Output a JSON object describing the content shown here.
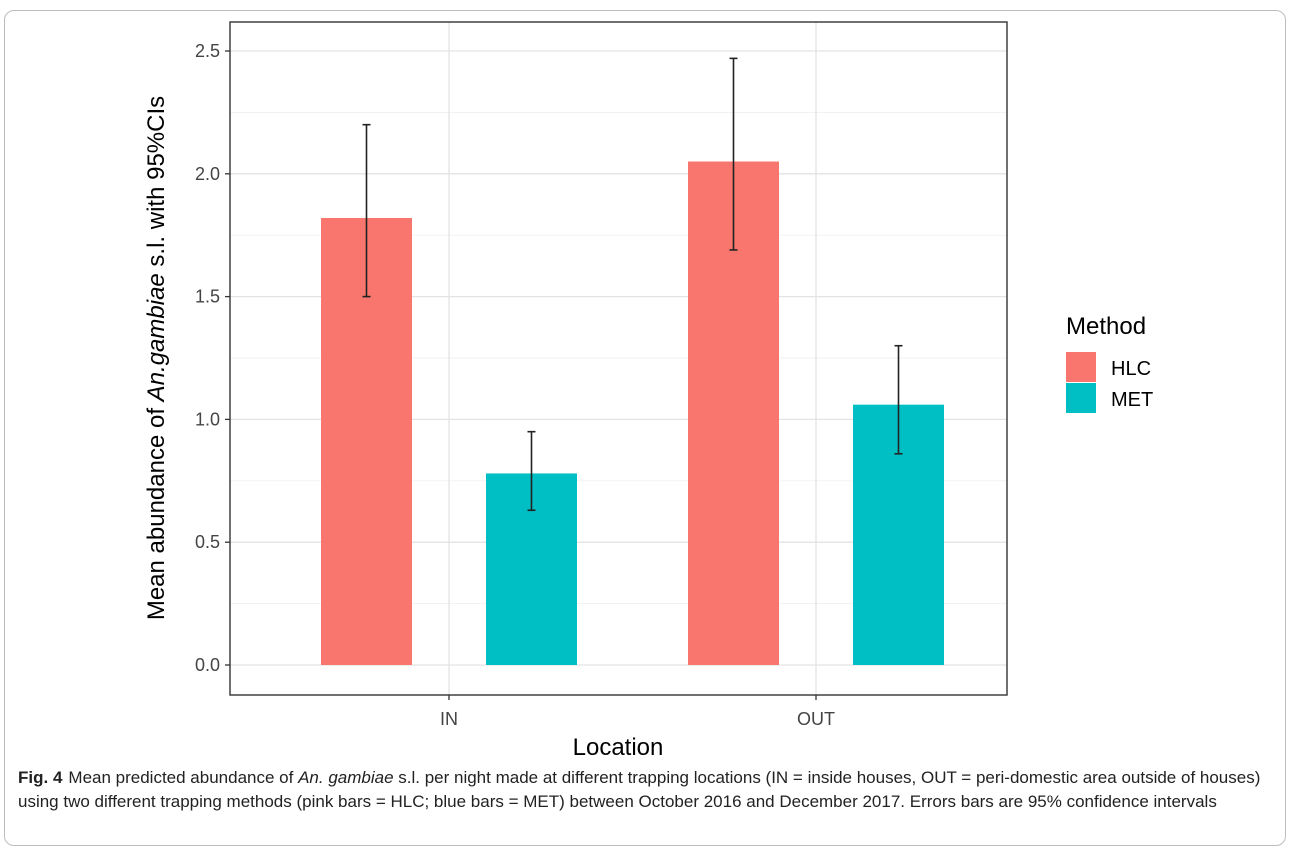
{
  "chart_data": {
    "type": "bar",
    "categories": [
      "IN",
      "OUT"
    ],
    "series": [
      {
        "name": "HLC",
        "color": "#F8766D",
        "values": [
          1.82,
          2.05
        ],
        "ci_low": [
          1.5,
          1.69
        ],
        "ci_high": [
          2.2,
          2.47
        ]
      },
      {
        "name": "MET",
        "color": "#00BFC4",
        "values": [
          0.78,
          1.06
        ],
        "ci_low": [
          0.63,
          0.86
        ],
        "ci_high": [
          0.95,
          1.3
        ]
      }
    ],
    "ylim": [
      0,
      2.6
    ],
    "yticks": [
      "0.0",
      "0.5",
      "1.0",
      "1.5",
      "2.0",
      "2.5"
    ],
    "xlabel": "Location",
    "ylabel_pre": "Mean abundance of ",
    "ylabel_italic": "An.gambiae",
    "ylabel_post": " s.l. with 95%CIs",
    "legend_title": "Method",
    "legend_position": "right",
    "grid": true
  },
  "caption": {
    "label": "Fig. 4",
    "text_1": "Mean predicted abundance of ",
    "species": "An. gambiae",
    "text_2": " s.l. per night made at different trapping locations (IN = inside houses, OUT = peri-domestic area outside of houses) using two different trapping methods (pink bars = HLC; blue bars = MET) between October 2016 and December 2017. Errors bars are 95% confidence intervals"
  }
}
